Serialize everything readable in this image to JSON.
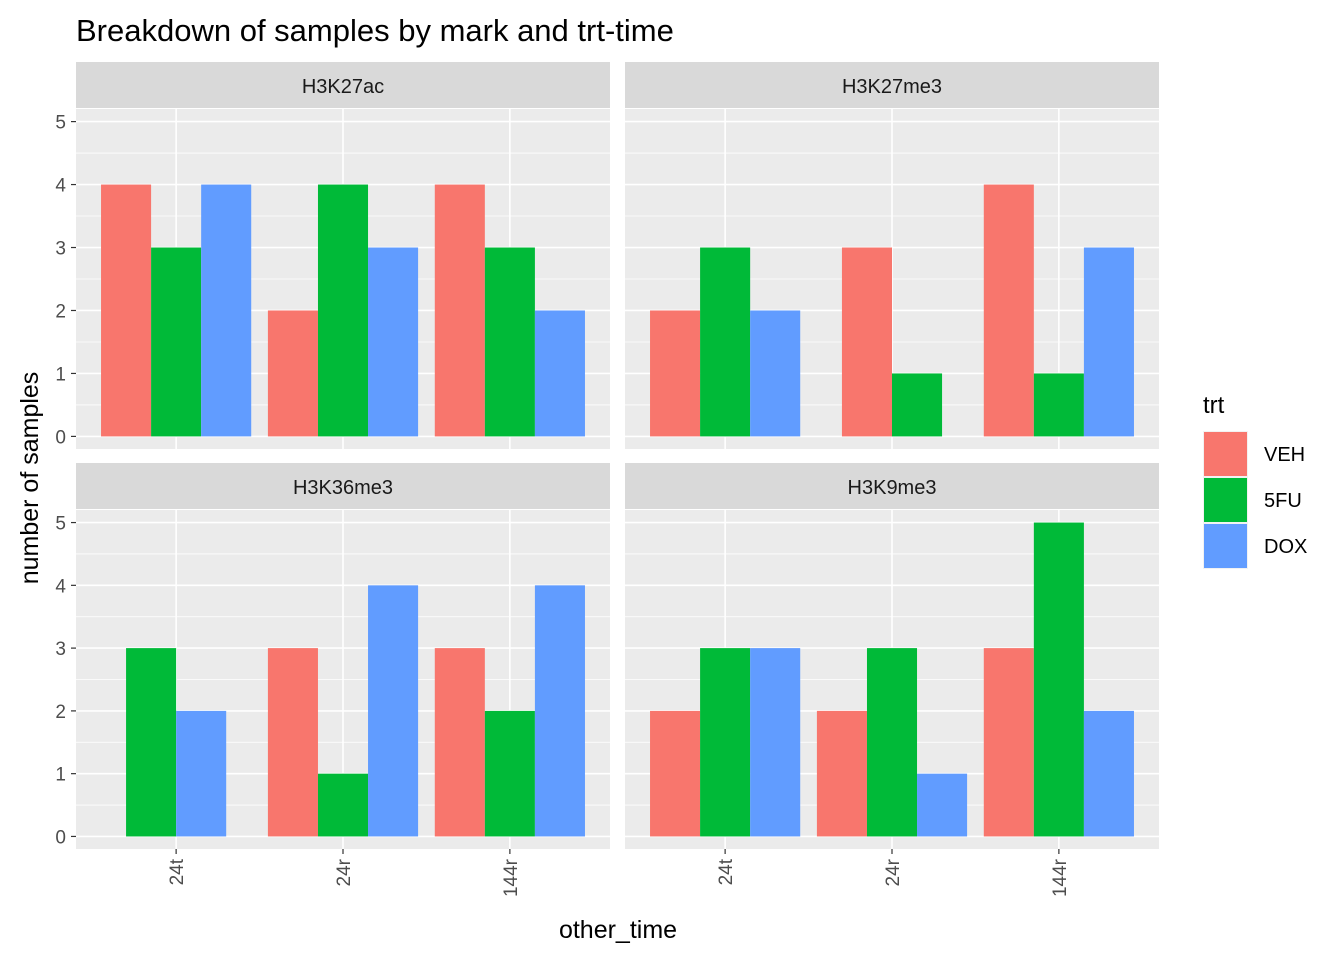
{
  "chart_data": {
    "type": "bar",
    "title": "Breakdown of samples by mark and trt-time",
    "xlabel": "other_time",
    "ylabel": "number of samples",
    "categories": [
      "24t",
      "24r",
      "144r"
    ],
    "yticks": [
      0,
      1,
      2,
      3,
      4,
      5
    ],
    "ylim": [
      -0.2,
      5.2
    ],
    "grid": true,
    "legend": {
      "title": "trt",
      "position": "right",
      "entries": [
        {
          "name": "VEH",
          "color": "#F8766D"
        },
        {
          "name": "5FU",
          "color": "#00BA38"
        },
        {
          "name": "DOX",
          "color": "#619CFF"
        }
      ]
    },
    "panels": [
      {
        "label": "H3K27ac",
        "groups": [
          [
            {
              "trt": "VEH",
              "value": 4
            },
            {
              "trt": "5FU",
              "value": 3
            },
            {
              "trt": "DOX",
              "value": 4
            }
          ],
          [
            {
              "trt": "VEH",
              "value": 2
            },
            {
              "trt": "5FU",
              "value": 4
            },
            {
              "trt": "DOX",
              "value": 3
            }
          ],
          [
            {
              "trt": "VEH",
              "value": 4
            },
            {
              "trt": "5FU",
              "value": 3
            },
            {
              "trt": "DOX",
              "value": 2
            }
          ]
        ]
      },
      {
        "label": "H3K27me3",
        "groups": [
          [
            {
              "trt": "VEH",
              "value": 2
            },
            {
              "trt": "5FU",
              "value": 3
            },
            {
              "trt": "DOX",
              "value": 2
            }
          ],
          [
            {
              "trt": "VEH",
              "value": 3
            },
            {
              "trt": "5FU",
              "value": 1
            }
          ],
          [
            {
              "trt": "VEH",
              "value": 4
            },
            {
              "trt": "5FU",
              "value": 1
            },
            {
              "trt": "DOX",
              "value": 3
            }
          ]
        ]
      },
      {
        "label": "H3K36me3",
        "groups": [
          [
            {
              "trt": "5FU",
              "value": 3
            },
            {
              "trt": "DOX",
              "value": 2
            }
          ],
          [
            {
              "trt": "VEH",
              "value": 3
            },
            {
              "trt": "5FU",
              "value": 1
            },
            {
              "trt": "DOX",
              "value": 4
            }
          ],
          [
            {
              "trt": "VEH",
              "value": 3
            },
            {
              "trt": "5FU",
              "value": 2
            },
            {
              "trt": "DOX",
              "value": 4
            }
          ]
        ]
      },
      {
        "label": "H3K9me3",
        "groups": [
          [
            {
              "trt": "VEH",
              "value": 2
            },
            {
              "trt": "5FU",
              "value": 3
            },
            {
              "trt": "DOX",
              "value": 3
            }
          ],
          [
            {
              "trt": "VEH",
              "value": 2
            },
            {
              "trt": "5FU",
              "value": 3
            },
            {
              "trt": "DOX",
              "value": 1
            }
          ],
          [
            {
              "trt": "VEH",
              "value": 3
            },
            {
              "trt": "5FU",
              "value": 5
            },
            {
              "trt": "DOX",
              "value": 2
            }
          ]
        ]
      }
    ]
  }
}
